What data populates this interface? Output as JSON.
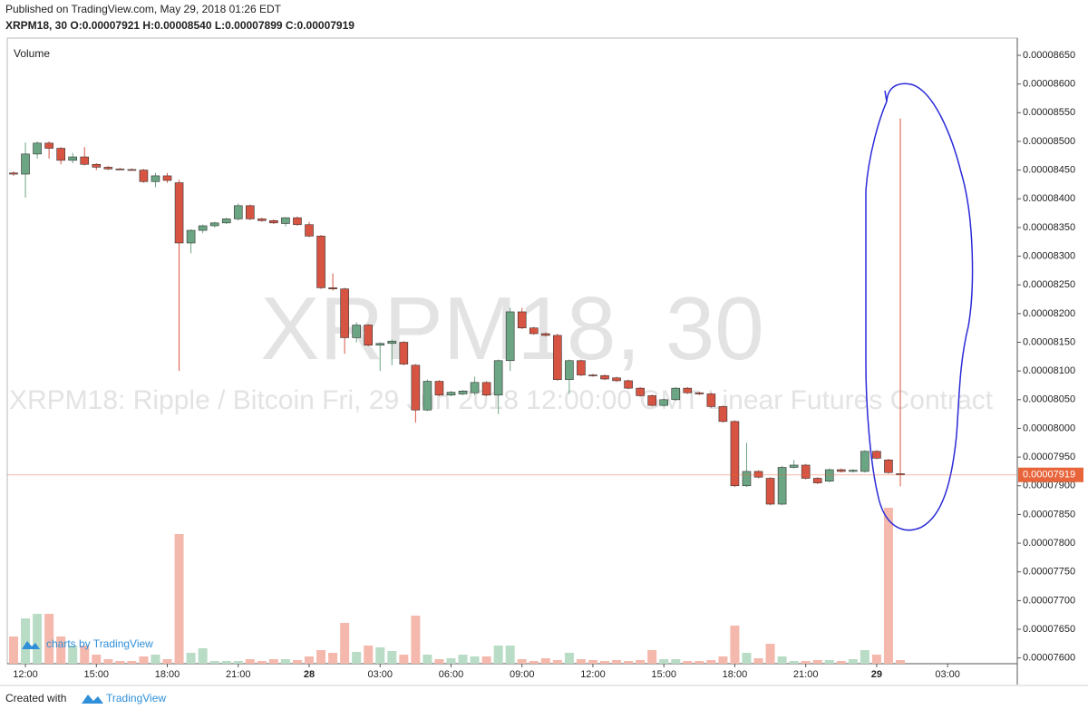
{
  "chart_data": {
    "type": "candlestick",
    "title": "Published on TradingView.com, May 29, 2018 01:26 EDT",
    "subtitle": "XRPM18, 30 O:0.00007921 H:0.00008540 L:0.00007899 C:0.00007919",
    "watermark": "XRPM18, 30",
    "watermark_description": "XRPM18: Ripple / Bitcoin Fri, 29 Jun 2018 12:00:00 GMT Linear Futures Contract",
    "volume_label": "Volume",
    "branding": "charts by TradingView",
    "footer_prefix": "Created with",
    "footer_brand": "TradingView",
    "up_color": "#6ba583",
    "down_color": "#d75442",
    "up_volume_color": "#b9dcc6",
    "down_volume_color": "#f4b9ac",
    "categories": [
      null,
      "12:00",
      null,
      null,
      null,
      null,
      null,
      "15:00",
      null,
      null,
      null,
      null,
      null,
      "18:00",
      null,
      null,
      null,
      null,
      null,
      "21:00",
      null,
      null,
      null,
      null,
      null,
      "28",
      null,
      null,
      null,
      null,
      null,
      "03:00",
      null,
      null,
      null,
      null,
      null,
      "06:00",
      null,
      null,
      null,
      null,
      null,
      "09:00",
      null,
      null,
      null,
      null,
      null,
      "12:00",
      null,
      null,
      null,
      null,
      null,
      "15:00",
      null,
      null,
      null,
      null,
      null,
      "18:00",
      null,
      null,
      null,
      null,
      null,
      "21:00",
      null,
      null,
      null,
      null,
      null,
      "29",
      null,
      null,
      null,
      null,
      null,
      "03:00"
    ],
    "bold_categories": [
      "28",
      "29"
    ],
    "open": [
      8.445e-05,
      8.443e-05,
      8.478e-05,
      8.497e-05,
      8.488e-05,
      8.467e-05,
      8.473e-05,
      8.46e-05,
      8.455e-05,
      8.452e-05,
      8.451e-05,
      8.45e-05,
      8.43e-05,
      8.44e-05,
      8.428e-05,
      8.323e-05,
      8.345e-05,
      8.353e-05,
      8.358e-05,
      8.365e-05,
      8.388e-05,
      8.365e-05,
      8.362e-05,
      8.357e-05,
      8.367e-05,
      8.355e-05,
      8.335e-05,
      8.245e-05,
      8.243e-05,
      8.158e-05,
      8.18e-05,
      8.145e-05,
      8.148e-05,
      8.15e-05,
      8.11e-05,
      8.032e-05,
      8.082e-05,
      8.058e-05,
      8.06e-05,
      8.062e-05,
      8.08e-05,
      8.058e-05,
      8.118e-05,
      8.203e-05,
      8.175e-05,
      8.165e-05,
      8.162e-05,
      8.085e-05,
      8.118e-05,
      8.093e-05,
      8.092e-05,
      8.088e-05,
      8.083e-05,
      8.07e-05,
      8.057e-05,
      8.04e-05,
      8.05e-05,
      8.07e-05,
      8.062e-05,
      8.06e-05,
      8.038e-05,
      8.012e-05,
      7.9e-05,
      7.925e-05,
      7.913e-05,
      7.868e-05,
      7.932e-05,
      7.936e-05,
      7.913e-05,
      7.908e-05,
      7.928e-05,
      7.925e-05,
      7.925e-05,
      7.96e-05,
      7.945e-05,
      7.921e-05,
      null,
      null,
      null,
      null
    ],
    "high": [
      8.448e-05,
      8.498e-05,
      8.5e-05,
      8.5e-05,
      8.49e-05,
      8.48e-05,
      8.49e-05,
      8.462e-05,
      8.457e-05,
      8.454e-05,
      8.453e-05,
      8.452e-05,
      8.445e-05,
      8.445e-05,
      8.433e-05,
      8.347e-05,
      8.355e-05,
      8.36e-05,
      8.367e-05,
      8.392e-05,
      8.39e-05,
      8.367e-05,
      8.364e-05,
      8.368e-05,
      8.369e-05,
      8.36e-05,
      8.337e-05,
      8.27e-05,
      8.245e-05,
      8.185e-05,
      8.182e-05,
      8.15e-05,
      8.155e-05,
      8.152e-05,
      8.112e-05,
      8.085e-05,
      8.084e-05,
      8.065e-05,
      8.067e-05,
      8.09e-05,
      8.082e-05,
      8.12e-05,
      8.21e-05,
      8.21e-05,
      8.177e-05,
      8.167e-05,
      8.165e-05,
      8.12e-05,
      8.12e-05,
      8.095e-05,
      8.094e-05,
      8.09e-05,
      8.085e-05,
      8.072e-05,
      8.059e-05,
      8.052e-05,
      8.072e-05,
      8.072e-05,
      8.064e-05,
      8.062e-05,
      8.04e-05,
      8.014e-05,
      7.975e-05,
      7.927e-05,
      7.915e-05,
      7.935e-05,
      7.945e-05,
      7.938e-05,
      7.915e-05,
      7.93e-05,
      7.93e-05,
      7.929e-05,
      7.962e-05,
      7.962e-05,
      7.947e-05,
      8.54e-05,
      null,
      null,
      null,
      null
    ],
    "low": [
      8.44e-05,
      8.402e-05,
      8.47e-05,
      8.47e-05,
      8.46e-05,
      8.462e-05,
      8.458e-05,
      8.45e-05,
      8.45e-05,
      8.45e-05,
      8.449e-05,
      8.428e-05,
      8.42e-05,
      8.428e-05,
      8.1e-05,
      8.305e-05,
      8.34e-05,
      8.35e-05,
      8.356e-05,
      8.362e-05,
      8.363e-05,
      8.36e-05,
      8.356e-05,
      8.352e-05,
      8.353e-05,
      8.333e-05,
      8.243e-05,
      8.24e-05,
      8.13e-05,
      8.15e-05,
      8.143e-05,
      8.1e-05,
      8.11e-05,
      8.11e-05,
      8.01e-05,
      8.03e-05,
      8.056e-05,
      8.056e-05,
      8.058e-05,
      8.058e-05,
      8.056e-05,
      8.025e-05,
      8.1e-05,
      8.173e-05,
      8.163e-05,
      8.16e-05,
      8.083e-05,
      8.06e-05,
      8.091e-05,
      8.09e-05,
      8.084e-05,
      8.081e-05,
      8.068e-05,
      8.055e-05,
      8.038e-05,
      8.038e-05,
      8.048e-05,
      8.06e-05,
      8.058e-05,
      8.036e-05,
      8.01e-05,
      7.898e-05,
      7.898e-05,
      7.913e-05,
      7.866e-05,
      7.866e-05,
      7.93e-05,
      7.911e-05,
      7.903e-05,
      7.906e-05,
      7.923e-05,
      7.923e-05,
      7.923e-05,
      7.946e-05,
      7.921e-05,
      7.899e-05,
      null,
      null,
      null,
      null
    ],
    "close": [
      8.443e-05,
      8.478e-05,
      8.497e-05,
      8.488e-05,
      8.467e-05,
      8.473e-05,
      8.46e-05,
      8.455e-05,
      8.452e-05,
      8.451e-05,
      8.45e-05,
      8.43e-05,
      8.44e-05,
      8.432e-05,
      8.323e-05,
      8.345e-05,
      8.353e-05,
      8.358e-05,
      8.365e-05,
      8.388e-05,
      8.365e-05,
      8.362e-05,
      8.358e-05,
      8.367e-05,
      8.355e-05,
      8.335e-05,
      8.245e-05,
      8.243e-05,
      8.158e-05,
      8.18e-05,
      8.145e-05,
      8.148e-05,
      8.152e-05,
      8.112e-05,
      8.032e-05,
      8.082e-05,
      8.058e-05,
      8.063e-05,
      8.065e-05,
      8.08e-05,
      8.058e-05,
      8.118e-05,
      8.203e-05,
      8.175e-05,
      8.165e-05,
      8.162e-05,
      8.085e-05,
      8.118e-05,
      8.093e-05,
      8.092e-05,
      8.086e-05,
      8.083e-05,
      8.07e-05,
      8.057e-05,
      8.04e-05,
      8.05e-05,
      8.07e-05,
      8.062e-05,
      8.06e-05,
      8.038e-05,
      8.012e-05,
      7.9e-05,
      7.925e-05,
      7.915e-05,
      7.868e-05,
      7.932e-05,
      7.936e-05,
      7.913e-05,
      7.905e-05,
      7.928e-05,
      7.925e-05,
      7.927e-05,
      7.96e-05,
      7.948e-05,
      7.923e-05,
      7.919e-05,
      null,
      null,
      null,
      null
    ],
    "volume": [
      30,
      50,
      55,
      55,
      30,
      20,
      20,
      10,
      5,
      3,
      3,
      8,
      10,
      5,
      143,
      12,
      17,
      3,
      3,
      3,
      5,
      3,
      5,
      5,
      4,
      8,
      15,
      12,
      45,
      13,
      20,
      18,
      14,
      10,
      53,
      10,
      5,
      6,
      10,
      8,
      8,
      20,
      20,
      5,
      3,
      6,
      4,
      12,
      5,
      4,
      3,
      4,
      3,
      4,
      15,
      5,
      5,
      3,
      3,
      4,
      8,
      42,
      12,
      6,
      22,
      8,
      3,
      3,
      4,
      4,
      3,
      5,
      15,
      10,
      172,
      4,
      null,
      null,
      null,
      null
    ],
    "vlim": [
      0,
      200
    ],
    "ylim": [
      7.59e-05,
      8.68e-05
    ],
    "yticks": [
      {
        "value": 7.6e-05,
        "label": "0.00007600"
      },
      {
        "value": 7.65e-05,
        "label": "0.00007650"
      },
      {
        "value": 7.7e-05,
        "label": "0.00007700"
      },
      {
        "value": 7.75e-05,
        "label": "0.00007750"
      },
      {
        "value": 7.8e-05,
        "label": "0.00007800"
      },
      {
        "value": 7.85e-05,
        "label": "0.00007850"
      },
      {
        "value": 7.9e-05,
        "label": "0.00007900"
      },
      {
        "value": 7.95e-05,
        "label": "0.00007950"
      },
      {
        "value": 8e-05,
        "label": "0.00008000"
      },
      {
        "value": 8.05e-05,
        "label": "0.00008050"
      },
      {
        "value": 8.1e-05,
        "label": "0.00008100"
      },
      {
        "value": 8.15e-05,
        "label": "0.00008150"
      },
      {
        "value": 8.2e-05,
        "label": "0.00008200"
      },
      {
        "value": 8.25e-05,
        "label": "0.00008250"
      },
      {
        "value": 8.3e-05,
        "label": "0.00008300"
      },
      {
        "value": 8.35e-05,
        "label": "0.00008350"
      },
      {
        "value": 8.4e-05,
        "label": "0.00008400"
      },
      {
        "value": 8.45e-05,
        "label": "0.00008450"
      },
      {
        "value": 8.5e-05,
        "label": "0.00008500"
      },
      {
        "value": 8.55e-05,
        "label": "0.00008550"
      },
      {
        "value": 8.6e-05,
        "label": "0.00008600"
      },
      {
        "value": 8.65e-05,
        "label": "0.00008650"
      }
    ],
    "last_price": {
      "value": 7.919e-05,
      "label": "0.00007919",
      "color": "#e8643a"
    }
  }
}
